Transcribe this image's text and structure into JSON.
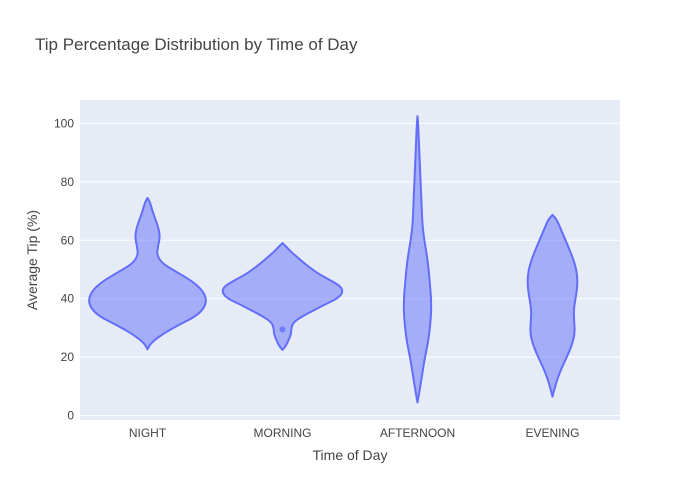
{
  "chart_data": {
    "type": "violin",
    "title": "Tip Percentage Distribution by Time of Day",
    "xlabel": "Time of Day",
    "ylabel": "Average Tip (%)",
    "ylim": [
      -1.5,
      108
    ],
    "yticks": [
      0,
      20,
      40,
      60,
      80,
      100
    ],
    "grid": true,
    "colors": {
      "plot_bg": "#E5ECF6",
      "violin_fill": "#636EFA",
      "violin_stroke": "#636EFA"
    },
    "categories": [
      "NIGHT",
      "MORNING",
      "AFTERNOON",
      "EVENING"
    ],
    "violins": [
      {
        "category": "NIGHT",
        "min": 22.7,
        "max": 74.5,
        "profile": [
          [
            22.7,
            0.0
          ],
          [
            25,
            0.06
          ],
          [
            28,
            0.25
          ],
          [
            31,
            0.5
          ],
          [
            34,
            0.78
          ],
          [
            37,
            0.92
          ],
          [
            40,
            0.95
          ],
          [
            43,
            0.88
          ],
          [
            46,
            0.72
          ],
          [
            49,
            0.48
          ],
          [
            52,
            0.24
          ],
          [
            55,
            0.15
          ],
          [
            58,
            0.17
          ],
          [
            61,
            0.2
          ],
          [
            64,
            0.18
          ],
          [
            67,
            0.13
          ],
          [
            70,
            0.08
          ],
          [
            73,
            0.04
          ],
          [
            74.5,
            0.0
          ]
        ]
      },
      {
        "category": "MORNING",
        "min": 22.5,
        "max": 59.0,
        "profile": [
          [
            22.5,
            0.0
          ],
          [
            24,
            0.06
          ],
          [
            26,
            0.1
          ],
          [
            28,
            0.14
          ],
          [
            30,
            0.14
          ],
          [
            32,
            0.18
          ],
          [
            34,
            0.32
          ],
          [
            36,
            0.5
          ],
          [
            38,
            0.68
          ],
          [
            40,
            0.88
          ],
          [
            42,
            0.97
          ],
          [
            44,
            0.95
          ],
          [
            46,
            0.8
          ],
          [
            48,
            0.62
          ],
          [
            50,
            0.48
          ],
          [
            52,
            0.36
          ],
          [
            54,
            0.25
          ],
          [
            56,
            0.14
          ],
          [
            58,
            0.05
          ],
          [
            59,
            0.0
          ]
        ]
      },
      {
        "category": "AFTERNOON",
        "min": 4.5,
        "max": 102.5,
        "profile": [
          [
            4.5,
            0.0
          ],
          [
            8,
            0.03
          ],
          [
            12,
            0.06
          ],
          [
            16,
            0.09
          ],
          [
            20,
            0.12
          ],
          [
            25,
            0.17
          ],
          [
            30,
            0.2
          ],
          [
            35,
            0.22
          ],
          [
            40,
            0.22
          ],
          [
            45,
            0.2
          ],
          [
            50,
            0.18
          ],
          [
            55,
            0.15
          ],
          [
            60,
            0.11
          ],
          [
            65,
            0.08
          ],
          [
            70,
            0.07
          ],
          [
            75,
            0.06
          ],
          [
            80,
            0.05
          ],
          [
            85,
            0.04
          ],
          [
            90,
            0.03
          ],
          [
            95,
            0.02
          ],
          [
            100,
            0.01
          ],
          [
            102.5,
            0.0
          ]
        ]
      },
      {
        "category": "EVENING",
        "min": 6.5,
        "max": 68.7,
        "profile": [
          [
            6.5,
            0.0
          ],
          [
            9,
            0.03
          ],
          [
            12,
            0.07
          ],
          [
            16,
            0.14
          ],
          [
            20,
            0.23
          ],
          [
            24,
            0.31
          ],
          [
            28,
            0.36
          ],
          [
            32,
            0.35
          ],
          [
            36,
            0.34
          ],
          [
            40,
            0.37
          ],
          [
            44,
            0.4
          ],
          [
            48,
            0.4
          ],
          [
            52,
            0.36
          ],
          [
            56,
            0.29
          ],
          [
            60,
            0.21
          ],
          [
            64,
            0.13
          ],
          [
            67,
            0.07
          ],
          [
            68.7,
            0.0
          ]
        ]
      }
    ],
    "outliers": [
      {
        "category": "MORNING",
        "y": 29.5
      }
    ]
  }
}
